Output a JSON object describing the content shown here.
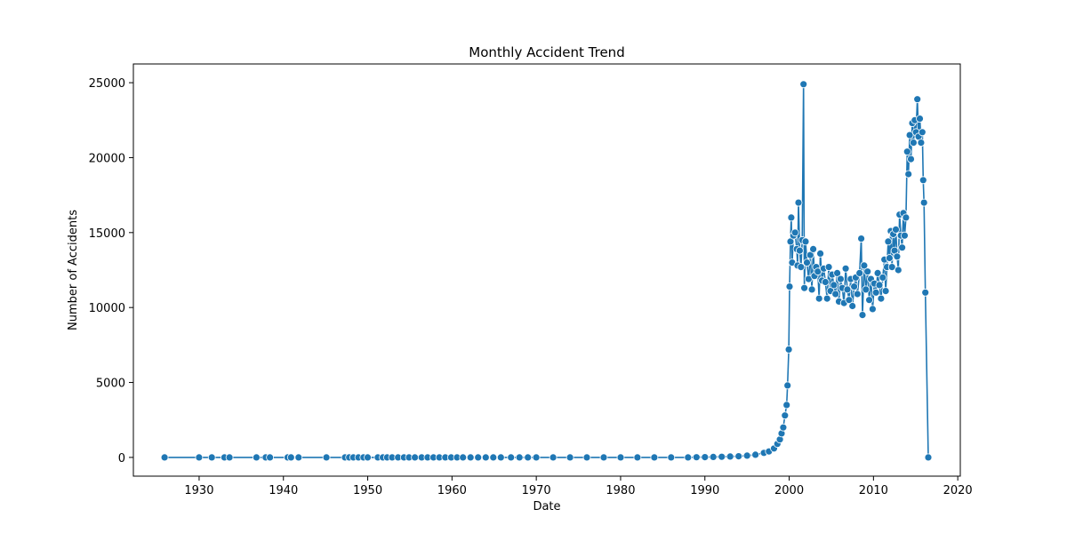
{
  "chart_data": {
    "type": "line",
    "title": "Monthly Accident Trend",
    "xlabel": "Date",
    "ylabel": "Number of Accidents",
    "xlim": [
      1922.2,
      2020.3
    ],
    "ylim": [
      -1250,
      26250
    ],
    "x_ticks": [
      1930,
      1940,
      1950,
      1960,
      1970,
      1980,
      1990,
      2000,
      2010,
      2020
    ],
    "y_ticks": [
      0,
      5000,
      10000,
      15000,
      20000,
      25000
    ],
    "grid": false,
    "legend": "none",
    "series_color": "#1f77b4",
    "series": [
      {
        "markers": "circle",
        "points": [
          [
            1925.9,
            0
          ],
          [
            1930.0,
            0
          ],
          [
            1931.5,
            0
          ],
          [
            1933.0,
            0
          ],
          [
            1933.6,
            0
          ],
          [
            1936.8,
            0
          ],
          [
            1937.9,
            0
          ],
          [
            1938.4,
            0
          ],
          [
            1940.5,
            0
          ],
          [
            1940.9,
            0
          ],
          [
            1941.8,
            0
          ],
          [
            1945.1,
            0
          ],
          [
            1947.3,
            0
          ],
          [
            1947.8,
            0
          ],
          [
            1948.3,
            0
          ],
          [
            1948.9,
            0
          ],
          [
            1949.5,
            0
          ],
          [
            1950.0,
            0
          ],
          [
            1951.2,
            0
          ],
          [
            1951.8,
            0
          ],
          [
            1952.3,
            0
          ],
          [
            1952.9,
            0
          ],
          [
            1953.6,
            0
          ],
          [
            1954.3,
            0
          ],
          [
            1954.9,
            0
          ],
          [
            1955.6,
            0
          ],
          [
            1956.4,
            0
          ],
          [
            1957.1,
            0
          ],
          [
            1957.8,
            0
          ],
          [
            1958.5,
            0
          ],
          [
            1959.2,
            0
          ],
          [
            1959.9,
            0
          ],
          [
            1960.6,
            0
          ],
          [
            1961.3,
            0
          ],
          [
            1962.2,
            0
          ],
          [
            1963.1,
            0
          ],
          [
            1964.0,
            0
          ],
          [
            1964.9,
            0
          ],
          [
            1965.8,
            0
          ],
          [
            1967.0,
            0
          ],
          [
            1968.0,
            0
          ],
          [
            1969.0,
            0
          ],
          [
            1970.0,
            0
          ],
          [
            1972.0,
            0
          ],
          [
            1974.0,
            0
          ],
          [
            1976.0,
            0
          ],
          [
            1978.0,
            0
          ],
          [
            1980.0,
            0
          ],
          [
            1982.0,
            0
          ],
          [
            1984.0,
            0
          ],
          [
            1986.0,
            0
          ],
          [
            1988.0,
            0
          ],
          [
            1989.0,
            10
          ],
          [
            1990.0,
            20
          ],
          [
            1991.0,
            30
          ],
          [
            1992.0,
            40
          ],
          [
            1993.0,
            60
          ],
          [
            1994.0,
            80
          ],
          [
            1995.0,
            120
          ],
          [
            1996.0,
            180
          ],
          [
            1997.0,
            300
          ],
          [
            1997.6,
            400
          ],
          [
            1998.2,
            600
          ],
          [
            1998.6,
            900
          ],
          [
            1998.9,
            1200
          ],
          [
            1999.1,
            1600
          ],
          [
            1999.3,
            2000
          ],
          [
            1999.5,
            2800
          ],
          [
            1999.7,
            3500
          ],
          [
            1999.8,
            4800
          ],
          [
            1999.95,
            7200
          ],
          [
            2000.05,
            11400
          ],
          [
            2000.15,
            14400
          ],
          [
            2000.25,
            16000
          ],
          [
            2000.35,
            13000
          ],
          [
            2000.5,
            14800
          ],
          [
            2000.7,
            15000
          ],
          [
            2000.9,
            13900
          ],
          [
            2001.0,
            12800
          ],
          [
            2001.1,
            17000
          ],
          [
            2001.25,
            13800
          ],
          [
            2001.4,
            12700
          ],
          [
            2001.55,
            14500
          ],
          [
            2001.7,
            24900
          ],
          [
            2001.8,
            11300
          ],
          [
            2001.95,
            14400
          ],
          [
            2002.1,
            13000
          ],
          [
            2002.3,
            11900
          ],
          [
            2002.5,
            13500
          ],
          [
            2002.7,
            11200
          ],
          [
            2002.85,
            13900
          ],
          [
            2003.0,
            12100
          ],
          [
            2003.2,
            12700
          ],
          [
            2003.4,
            12400
          ],
          [
            2003.55,
            10600
          ],
          [
            2003.7,
            13600
          ],
          [
            2003.9,
            11800
          ],
          [
            2004.1,
            12600
          ],
          [
            2004.3,
            11700
          ],
          [
            2004.5,
            10600
          ],
          [
            2004.7,
            12700
          ],
          [
            2004.9,
            11100
          ],
          [
            2005.1,
            12200
          ],
          [
            2005.3,
            11500
          ],
          [
            2005.5,
            10900
          ],
          [
            2005.7,
            12300
          ],
          [
            2005.9,
            10400
          ],
          [
            2006.1,
            11900
          ],
          [
            2006.3,
            11300
          ],
          [
            2006.5,
            10300
          ],
          [
            2006.7,
            12600
          ],
          [
            2006.9,
            11200
          ],
          [
            2007.1,
            10500
          ],
          [
            2007.3,
            11900
          ],
          [
            2007.5,
            10100
          ],
          [
            2007.7,
            11400
          ],
          [
            2007.9,
            12000
          ],
          [
            2008.1,
            10900
          ],
          [
            2008.35,
            12300
          ],
          [
            2008.55,
            14600
          ],
          [
            2008.7,
            9500
          ],
          [
            2008.9,
            12800
          ],
          [
            2009.1,
            11200
          ],
          [
            2009.3,
            12400
          ],
          [
            2009.5,
            10500
          ],
          [
            2009.7,
            11900
          ],
          [
            2009.9,
            9900
          ],
          [
            2010.1,
            11600
          ],
          [
            2010.3,
            11000
          ],
          [
            2010.5,
            12300
          ],
          [
            2010.7,
            11500
          ],
          [
            2010.9,
            10600
          ],
          [
            2011.1,
            12000
          ],
          [
            2011.3,
            13200
          ],
          [
            2011.45,
            11100
          ],
          [
            2011.6,
            12700
          ],
          [
            2011.75,
            14400
          ],
          [
            2011.9,
            13300
          ],
          [
            2012.05,
            15100
          ],
          [
            2012.2,
            12700
          ],
          [
            2012.35,
            14900
          ],
          [
            2012.5,
            13800
          ],
          [
            2012.65,
            15200
          ],
          [
            2012.8,
            13400
          ],
          [
            2012.95,
            12500
          ],
          [
            2013.1,
            16200
          ],
          [
            2013.25,
            14800
          ],
          [
            2013.4,
            14000
          ],
          [
            2013.55,
            16300
          ],
          [
            2013.7,
            14800
          ],
          [
            2013.85,
            16000
          ],
          [
            2014.0,
            20400
          ],
          [
            2014.15,
            18900
          ],
          [
            2014.3,
            21500
          ],
          [
            2014.45,
            19900
          ],
          [
            2014.6,
            22300
          ],
          [
            2014.75,
            21000
          ],
          [
            2014.9,
            22500
          ],
          [
            2015.05,
            21700
          ],
          [
            2015.2,
            23900
          ],
          [
            2015.35,
            21400
          ],
          [
            2015.5,
            22600
          ],
          [
            2015.65,
            21000
          ],
          [
            2015.8,
            21700
          ],
          [
            2015.9,
            18500
          ],
          [
            2016.0,
            17000
          ],
          [
            2016.15,
            11000
          ],
          [
            2016.5,
            0
          ]
        ]
      }
    ]
  }
}
